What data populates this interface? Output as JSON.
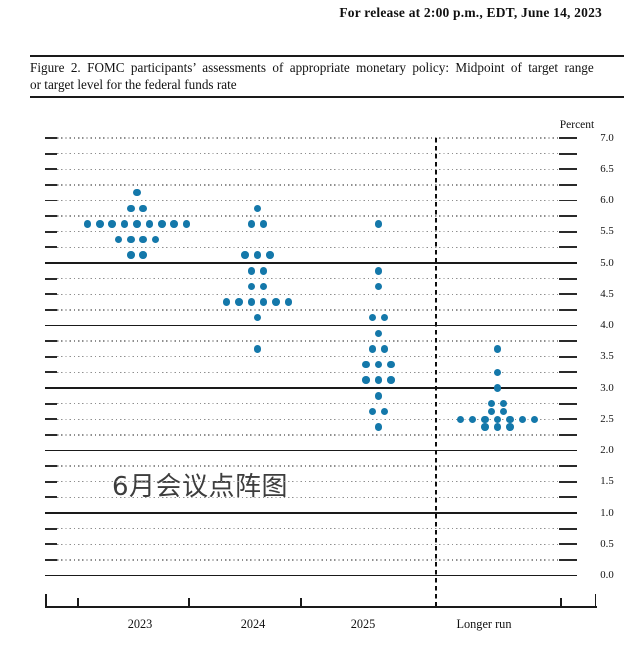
{
  "header": {
    "release_line": "For release at 2:00 p.m., EDT, June 14, 2023"
  },
  "caption": {
    "line1": "Figure 2.  FOMC participants’ assessments of appropriate monetary policy:  Midpoint of target range",
    "line2": "or target level for the federal funds rate"
  },
  "watermark": "6月会议点阵图",
  "chart_data": {
    "type": "scatter",
    "title": "FOMC dot plot — midpoint of target range or target level for the federal funds rate",
    "ylabel": "Percent",
    "ylim": [
      0.0,
      7.0
    ],
    "grid_step": 0.25,
    "label_step": 0.5,
    "solid_gridlines": [
      0,
      1,
      2,
      3,
      4,
      5
    ],
    "y_tick_labels": [
      "7.0",
      "6.5",
      "6.0",
      "5.5",
      "5.0",
      "4.5",
      "4.0",
      "3.5",
      "3.0",
      "2.5",
      "2.0",
      "1.5",
      "1.0",
      "0.5",
      "0.0"
    ],
    "dot_color": "#1478aa",
    "categories": [
      "2023",
      "2024",
      "2025",
      "Longer run"
    ],
    "series": [
      {
        "name": "2023",
        "dots": [
          {
            "rate": 6.125,
            "count": 1
          },
          {
            "rate": 5.875,
            "count": 2
          },
          {
            "rate": 5.625,
            "count": 9
          },
          {
            "rate": 5.375,
            "count": 4
          },
          {
            "rate": 5.125,
            "count": 2
          }
        ]
      },
      {
        "name": "2024",
        "dots": [
          {
            "rate": 5.875,
            "count": 1
          },
          {
            "rate": 5.625,
            "count": 2
          },
          {
            "rate": 5.125,
            "count": 3
          },
          {
            "rate": 4.875,
            "count": 2
          },
          {
            "rate": 4.625,
            "count": 2
          },
          {
            "rate": 4.375,
            "count": 6
          },
          {
            "rate": 4.125,
            "count": 1
          },
          {
            "rate": 3.625,
            "count": 1
          }
        ]
      },
      {
        "name": "2025",
        "dots": [
          {
            "rate": 5.625,
            "count": 1
          },
          {
            "rate": 4.875,
            "count": 1
          },
          {
            "rate": 4.625,
            "count": 1
          },
          {
            "rate": 4.125,
            "count": 2
          },
          {
            "rate": 3.875,
            "count": 1
          },
          {
            "rate": 3.625,
            "count": 2
          },
          {
            "rate": 3.375,
            "count": 3
          },
          {
            "rate": 3.125,
            "count": 3
          },
          {
            "rate": 2.875,
            "count": 1
          },
          {
            "rate": 2.625,
            "count": 2
          },
          {
            "rate": 2.375,
            "count": 1
          }
        ]
      },
      {
        "name": "Longer run",
        "dots": [
          {
            "rate": 3.625,
            "count": 1
          },
          {
            "rate": 3.25,
            "count": 1
          },
          {
            "rate": 3.0,
            "count": 1
          },
          {
            "rate": 2.75,
            "count": 2
          },
          {
            "rate": 2.625,
            "count": 2
          },
          {
            "rate": 2.5,
            "count": 7
          },
          {
            "rate": 2.375,
            "count": 3
          }
        ]
      }
    ]
  }
}
